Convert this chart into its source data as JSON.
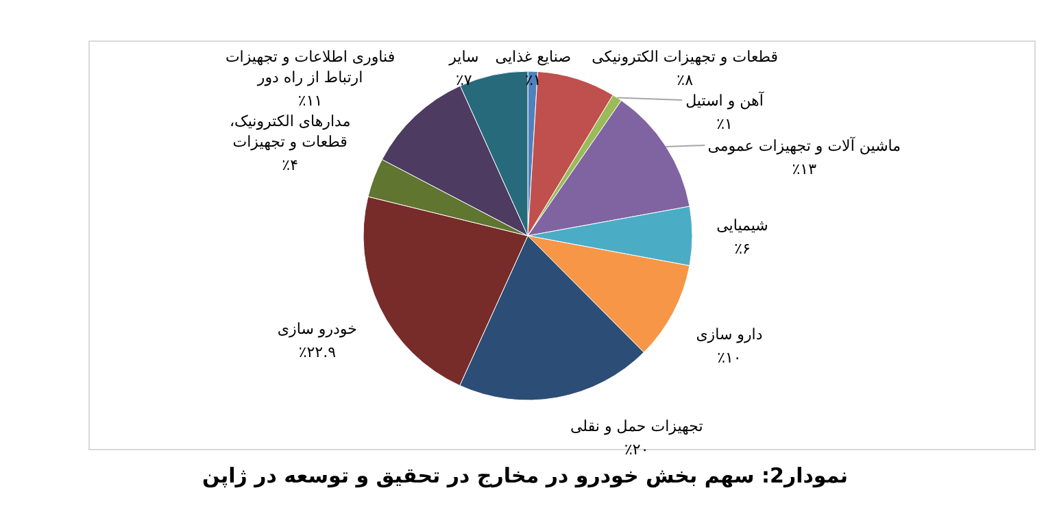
{
  "chart_data": {
    "type": "pie",
    "title": "نمودار2: سهم بخش خودرو در مخارج در تحقیق و توسعه در ژاپن",
    "categories": [
      "صنایع غذایی",
      "قطعات و تجهیزات الکترونیکی",
      "آهن و استیل",
      "ماشین آلات و تجهیزات عمومی",
      "شیمیایی",
      "دارو سازی",
      "تجهیزات حمل و نقلی",
      "خودرو سازی",
      "مدارهای الکترونیک،\nقطعات و تجهیزات",
      "فناوری اطلاعات و تجهیزات\nارتباط از راه دور",
      "سایر"
    ],
    "values": [
      1,
      8,
      1,
      13,
      6,
      10,
      20,
      22.9,
      4,
      11,
      7
    ],
    "value_labels": [
      "٪۱",
      "٪۸",
      "٪۱",
      "٪۱۳",
      "٪۶",
      "٪۱۰",
      "٪۲۰",
      "٪۲۲.۹",
      "٪۴",
      "٪۱۱",
      "٪۷"
    ],
    "colors": [
      "#4f81bd",
      "#c0504d",
      "#9bbb59",
      "#8064a2",
      "#4bacc6",
      "#f79646",
      "#2c4d75",
      "#772c2a",
      "#5f7530",
      "#4d3b62",
      "#276a7c"
    ],
    "legend": false
  }
}
